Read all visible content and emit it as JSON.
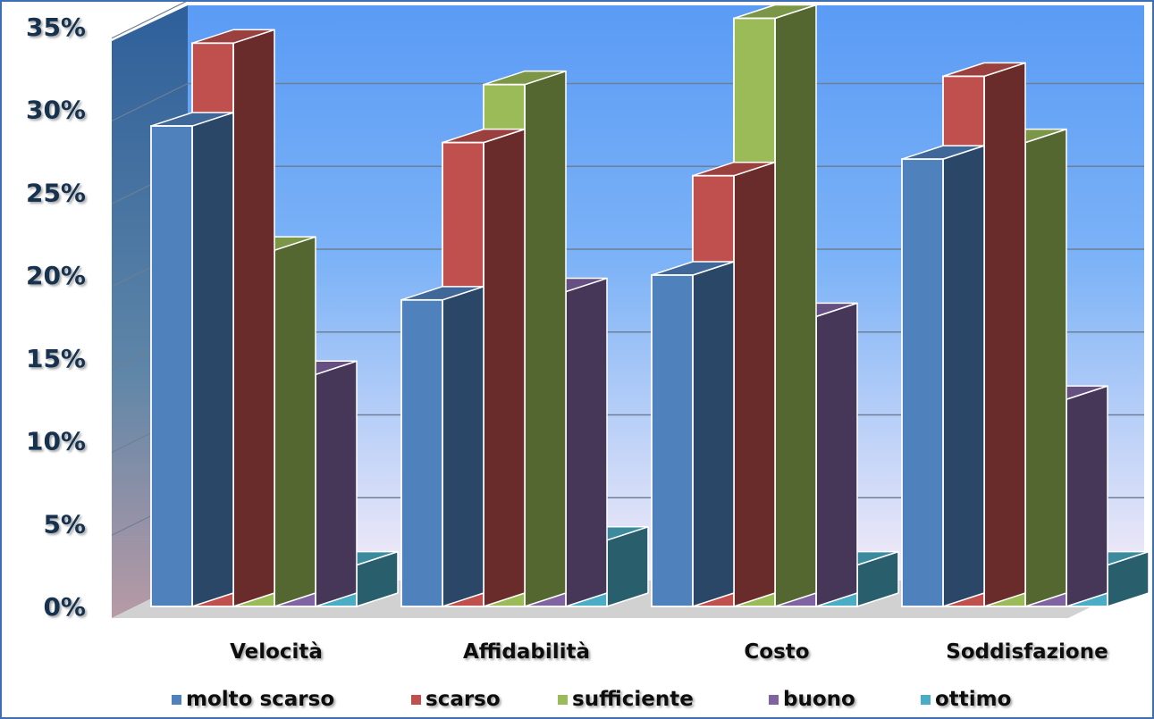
{
  "chart_data": {
    "type": "bar",
    "style": "3d-clustered-column",
    "categories": [
      "Velocità",
      "Affidabilità",
      "Costo",
      "Soddisfazione"
    ],
    "series": [
      {
        "name": "molto scarso",
        "color": "#4f81bd",
        "values": [
          29,
          18.5,
          20,
          27
        ]
      },
      {
        "name": "scarso",
        "color": "#c0504d",
        "values": [
          34,
          28,
          26,
          32
        ]
      },
      {
        "name": "sufficiente",
        "color": "#9bbb59",
        "values": [
          21.5,
          31.5,
          35.5,
          28
        ]
      },
      {
        "name": "buono",
        "color": "#8064a2",
        "values": [
          14,
          19,
          17.5,
          12.5
        ]
      },
      {
        "name": "ottimo",
        "color": "#4bacc6",
        "values": [
          2.5,
          4,
          2.5,
          2.5
        ]
      }
    ],
    "y_ticks": [
      "0%",
      "5%",
      "10%",
      "15%",
      "20%",
      "25%",
      "30%",
      "35%"
    ],
    "ylim": [
      0,
      35
    ],
    "grid": true,
    "legend_position": "bottom",
    "background_colors": [
      "#5a9bf5",
      "#f5ecf8"
    ]
  }
}
